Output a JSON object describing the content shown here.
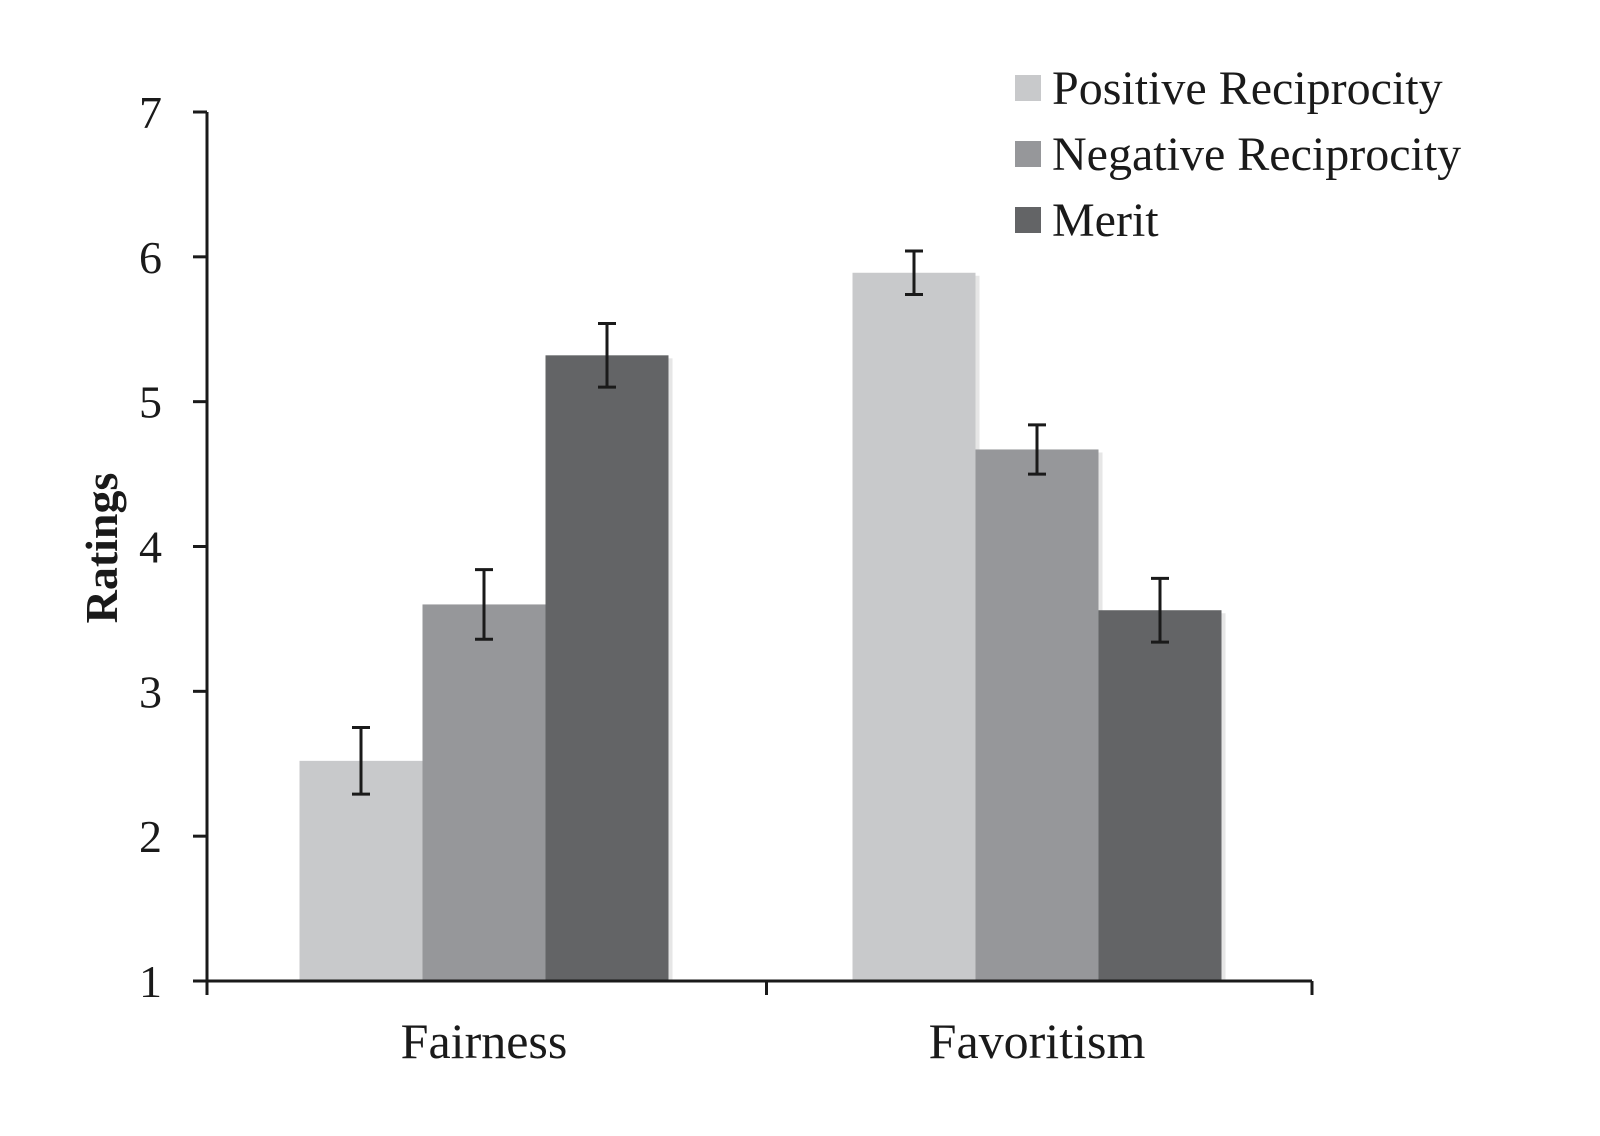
{
  "chart_data": {
    "type": "bar",
    "title": "",
    "xlabel": "",
    "ylabel": "Ratings",
    "ylim": [
      1,
      7
    ],
    "yticks": [
      "1",
      "2",
      "3",
      "4",
      "5",
      "6",
      "7"
    ],
    "categories": [
      "Fairness",
      "Favoritism"
    ],
    "series": [
      {
        "name": "Positive Reciprocity",
        "color": "#c8c9cb",
        "values": [
          2.52,
          5.89
        ],
        "error": [
          0.23,
          0.15
        ]
      },
      {
        "name": "Negative Reciprocity",
        "color": "#96979a",
        "values": [
          3.6,
          4.67
        ],
        "error": [
          0.24,
          0.17
        ]
      },
      {
        "name": "Merit",
        "color": "#636466",
        "values": [
          5.32,
          3.56
        ],
        "error": [
          0.22,
          0.22
        ]
      }
    ],
    "error_bars": true,
    "grid": false,
    "legend_position": "top-right"
  }
}
